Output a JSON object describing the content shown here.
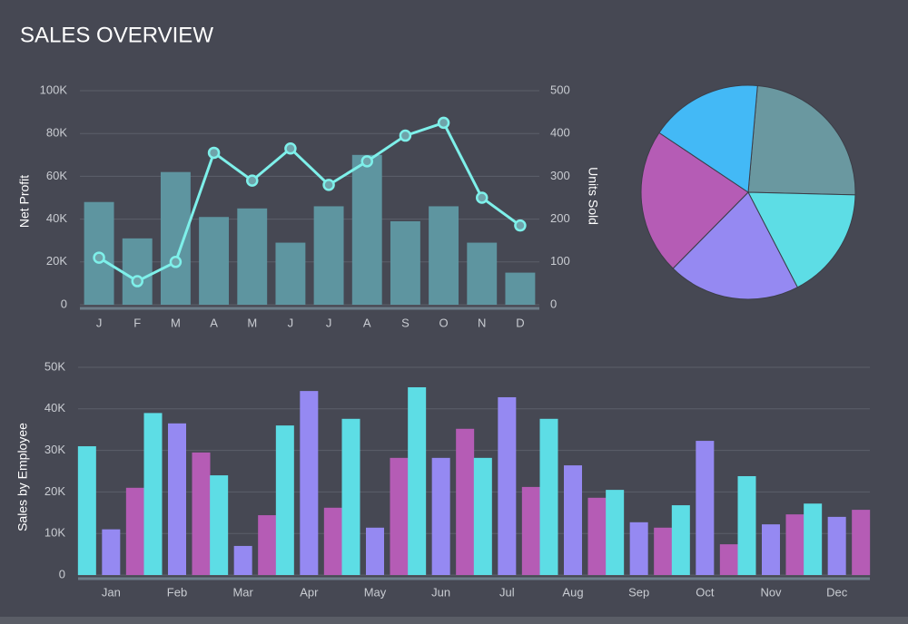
{
  "title": "SALES OVERVIEW",
  "chart_data": [
    {
      "type": "combo",
      "y_label": "Net Profit",
      "y2_label": "Units Sold",
      "categories": [
        "J",
        "F",
        "M",
        "A",
        "M",
        "J",
        "J",
        "A",
        "S",
        "O",
        "N",
        "D"
      ],
      "series": [
        {
          "type": "bar",
          "color": "#5e95a0",
          "values": [
            48000,
            31000,
            62000,
            41000,
            45000,
            29000,
            46000,
            70000,
            39000,
            46000,
            29000,
            15000
          ]
        },
        {
          "type": "line",
          "axis": "y2",
          "color": "#7ef0ea",
          "values": [
            110,
            55,
            100,
            355,
            290,
            365,
            280,
            335,
            395,
            425,
            250,
            185
          ]
        }
      ],
      "ylim": [
        0,
        100000
      ],
      "yticks": [
        0,
        {
          "value": 20000,
          "label": "20K"
        },
        {
          "value": 40000,
          "label": "40K"
        },
        {
          "value": 60000,
          "label": "60K"
        },
        {
          "value": 80000,
          "label": "80K"
        },
        {
          "value": 100000,
          "label": "100K"
        }
      ],
      "y2lim": [
        0,
        500
      ],
      "y2ticks": [
        0,
        100,
        200,
        300,
        400,
        500
      ],
      "grid": true
    },
    {
      "type": "pie",
      "values": [
        24,
        17,
        20,
        22,
        17
      ],
      "colors": [
        "#6a98a0",
        "#5ddde5",
        "#9589f2",
        "#b55cb5",
        "#43b9f6"
      ]
    },
    {
      "type": "bar",
      "y_label": "Sales by Employee",
      "categories": [
        "Jan",
        "Feb",
        "Mar",
        "Apr",
        "May",
        "Jun",
        "Jul",
        "Aug",
        "Sep",
        "Oct",
        "Nov",
        "Dec"
      ],
      "series": [
        {
          "color": "#5ddde5",
          "values": [
            31000,
            39000,
            24000,
            36000,
            37600,
            45200,
            28200,
            37600,
            20500,
            16800,
            23800,
            17200
          ]
        },
        {
          "color": "#9589f2",
          "values": [
            11000,
            36500,
            7000,
            44300,
            11400,
            28200,
            42800,
            26400,
            12700,
            32300,
            12200,
            14000
          ]
        },
        {
          "color": "#b55cb5",
          "values": [
            21000,
            29500,
            14400,
            16200,
            28200,
            35200,
            21200,
            18600,
            11400,
            7400,
            14600,
            15700
          ]
        }
      ],
      "ylim": [
        0,
        50000
      ],
      "yticks": [
        0,
        {
          "value": 10000,
          "label": "10K"
        },
        {
          "value": 20000,
          "label": "20K"
        },
        {
          "value": 30000,
          "label": "30K"
        },
        {
          "value": 40000,
          "label": "40K"
        },
        {
          "value": 50000,
          "label": "50K"
        }
      ],
      "grid": true
    }
  ]
}
